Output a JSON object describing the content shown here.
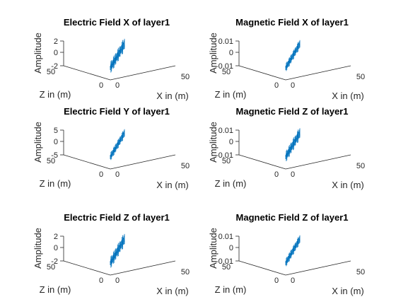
{
  "figure": {
    "background": "#ffffff",
    "axis_color": "#262626",
    "series_color": "#0072bd"
  },
  "chart_data": [
    {
      "type": "line",
      "title": "Electric Field X of layer1",
      "xlabel": "X in (m)",
      "ylabel": "Z in (m)",
      "zlabel": "Amplitude",
      "x_ticks": [
        "0",
        "50"
      ],
      "y_ticks": [
        "0",
        "50"
      ],
      "z_ticks": [
        "2",
        "0",
        "-2"
      ],
      "zlim": [
        -2,
        2
      ],
      "amplitude": 1.8,
      "series": [
        {
          "values": []
        }
      ]
    },
    {
      "type": "line",
      "title": "Magnetic Field X of layer1",
      "xlabel": "X in (m)",
      "ylabel": "Z in (m)",
      "zlabel": "Amplitude",
      "x_ticks": [
        "0",
        "50"
      ],
      "y_ticks": [
        "0",
        "50"
      ],
      "z_ticks": [
        "0.01",
        "0",
        "-0.01"
      ],
      "zlim": [
        -0.01,
        0.01
      ],
      "amplitude": 0.005,
      "series": [
        {
          "values": []
        }
      ]
    },
    {
      "type": "line",
      "title": "Electric Field Y of layer1",
      "xlabel": "X in (m)",
      "ylabel": "Z in (m)",
      "zlabel": "Amplitude",
      "x_ticks": [
        "0",
        "50"
      ],
      "y_ticks": [
        "0",
        "50"
      ],
      "z_ticks": [
        "5",
        "0",
        "-5"
      ],
      "zlim": [
        -5,
        5
      ],
      "amplitude": 2.4,
      "series": [
        {
          "values": []
        }
      ]
    },
    {
      "type": "line",
      "title": "Magnetic Field Z of layer1",
      "xlabel": "X in (m)",
      "ylabel": "Z in (m)",
      "zlabel": "Amplitude",
      "x_ticks": [
        "0",
        "50"
      ],
      "y_ticks": [
        "0",
        "50"
      ],
      "z_ticks": [
        "0.01",
        "0",
        "-0.01"
      ],
      "zlim": [
        -0.01,
        0.01
      ],
      "amplitude": 0.008,
      "series": [
        {
          "values": []
        }
      ]
    },
    {
      "type": "line",
      "title": "Electric Field Z of layer1",
      "xlabel": "X in (m)",
      "ylabel": "Z in (m)",
      "zlabel": "Amplitude",
      "x_ticks": [
        "0",
        "50"
      ],
      "y_ticks": [
        "0",
        "50"
      ],
      "z_ticks": [
        "2",
        "0",
        "-2"
      ],
      "zlim": [
        -2,
        2
      ],
      "amplitude": 1.8,
      "series": [
        {
          "values": []
        }
      ]
    },
    {
      "type": "line",
      "title": "Magnetic Field Z of layer1",
      "xlabel": "X in (m)",
      "ylabel": "Z in (m)",
      "zlabel": "Amplitude",
      "x_ticks": [
        "0",
        "50"
      ],
      "y_ticks": [
        "0",
        "50"
      ],
      "z_ticks": [
        "0.01",
        "0",
        "-0.01"
      ],
      "zlim": [
        -0.01,
        0.01
      ],
      "amplitude": 0.005,
      "series": [
        {
          "values": []
        }
      ]
    }
  ]
}
